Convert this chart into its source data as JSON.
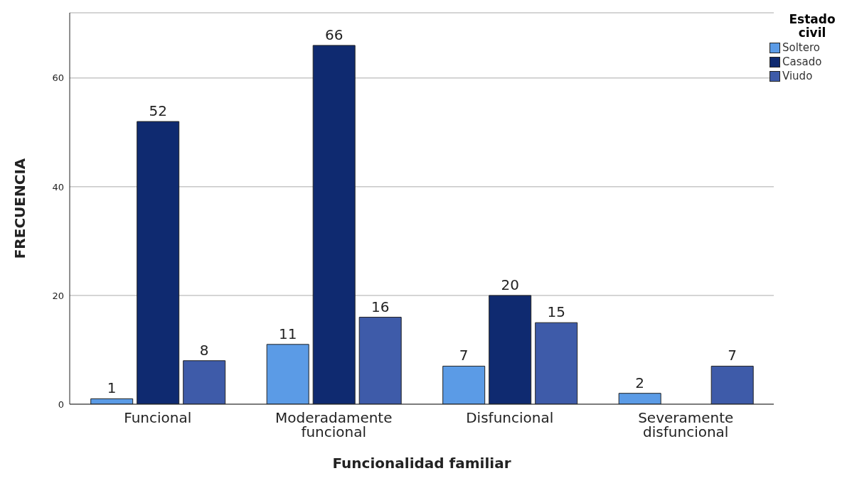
{
  "chart_data": {
    "type": "bar",
    "xlabel": "Funcionalidad familiar",
    "ylabel": "FRECUENCIA",
    "legend_title": "Estado civil",
    "categories": [
      "Funcional",
      "Moderadamente funcional",
      "Disfuncional",
      "Severamente disfuncional"
    ],
    "series": [
      {
        "name": "Soltero",
        "color": "#5b9be6",
        "values": [
          1,
          11,
          7,
          2
        ]
      },
      {
        "name": "Casado",
        "color": "#0f2a70",
        "values": [
          52,
          66,
          20,
          null
        ]
      },
      {
        "name": "Viudo",
        "color": "#3e5ba9",
        "values": [
          8,
          16,
          15,
          7
        ]
      }
    ],
    "ylim": [
      0,
      72
    ],
    "yticks": [
      0,
      20,
      40,
      60
    ],
    "grid": "y",
    "legend": "top right",
    "data_labels": true
  }
}
